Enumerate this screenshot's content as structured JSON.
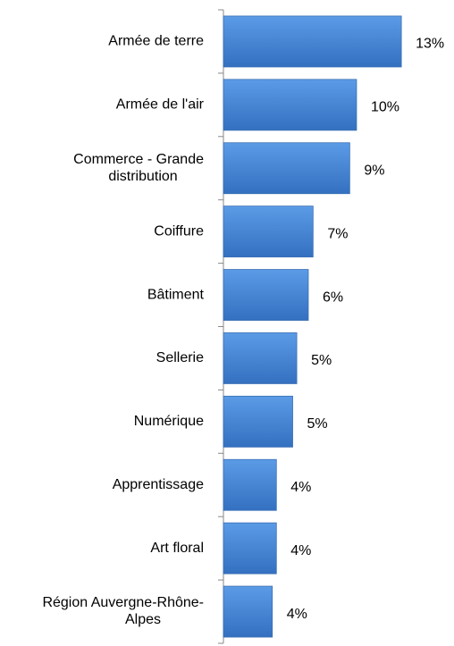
{
  "chart_data": {
    "type": "barh",
    "categories": [
      "Armée de terre",
      "Armée de l'air",
      "Commerce - Grande distribution",
      "Coiffure",
      "Bâtiment",
      "Sellerie",
      "Numérique",
      "Apprentissage",
      "Art floral",
      "Région Auvergne-Rhône-Alpes"
    ],
    "values": [
      13.1,
      9.8,
      9.3,
      6.6,
      6.25,
      5.4,
      5.1,
      3.9,
      3.9,
      3.6
    ],
    "value_labels": [
      "13%",
      "10%",
      "9%",
      "7%",
      "6%",
      "5%",
      "5%",
      "4%",
      "4%",
      "4%"
    ],
    "color": "#4a89d8"
  }
}
